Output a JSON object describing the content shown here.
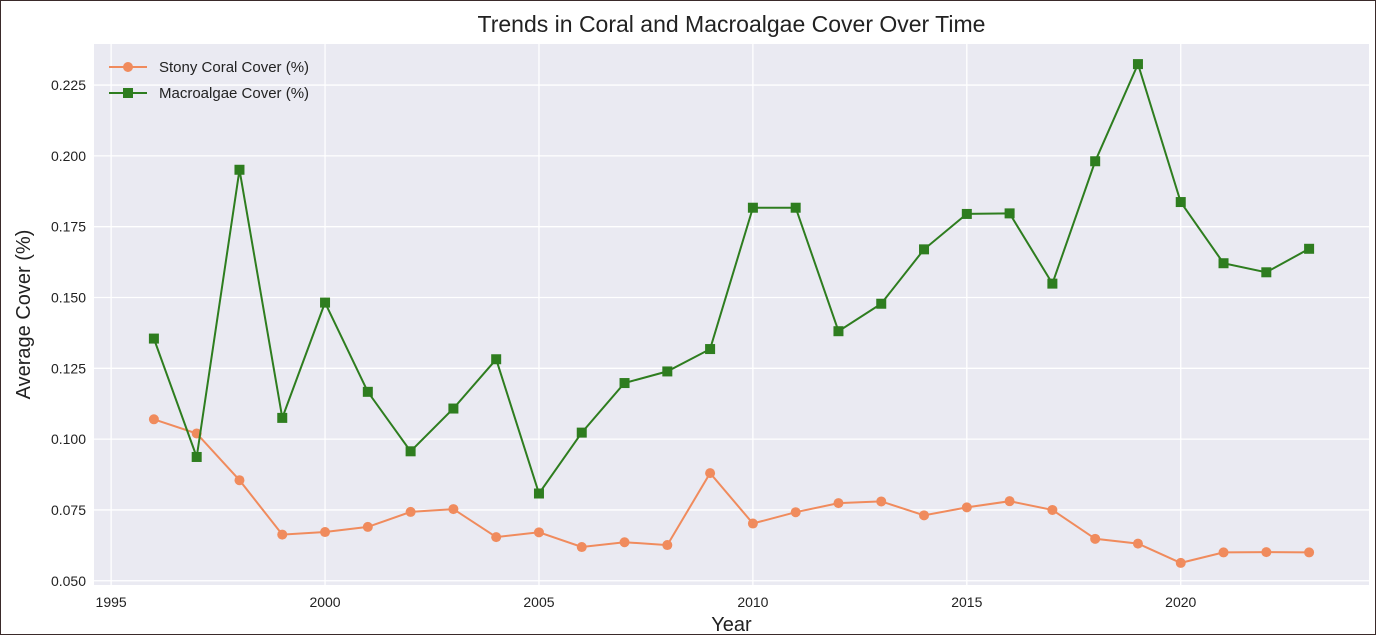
{
  "chart_data": {
    "type": "line",
    "title": "Trends in Coral and Macroalgae Cover Over Time",
    "xlabel": "Year",
    "ylabel": "Average Cover (%)",
    "xlim": [
      1994.6,
      1996.0
    ],
    "x": [
      1996,
      1997,
      1998,
      1999,
      2000,
      2001,
      2002,
      2003,
      2004,
      2005,
      2006,
      2007,
      2008,
      2009,
      2010,
      2011,
      2012,
      2013,
      2014,
      2015,
      2016,
      2017,
      2018,
      2019,
      2020,
      2021,
      2022,
      2023
    ],
    "xticks": [
      1995,
      2000,
      2005,
      2010,
      2015,
      2020
    ],
    "xtick_labels": [
      "1995",
      "2000",
      "2005",
      "2010",
      "2015",
      "2020"
    ],
    "ylim": [
      0.0485,
      0.2395
    ],
    "yticks": [
      0.05,
      0.075,
      0.1,
      0.125,
      0.15,
      0.175,
      0.2,
      0.225
    ],
    "ytick_labels": [
      "0.050",
      "0.075",
      "0.100",
      "0.125",
      "0.150",
      "0.175",
      "0.200",
      "0.225"
    ],
    "grid": true,
    "legend_position": "top-left",
    "series": [
      {
        "name": "Stony Coral Cover (%)",
        "color": "#f08b5d",
        "marker": "circle",
        "values": [
          0.107,
          0.102,
          0.0855,
          0.0663,
          0.0672,
          0.069,
          0.0743,
          0.0753,
          0.0654,
          0.0671,
          0.0619,
          0.0636,
          0.0626,
          0.088,
          0.0702,
          0.0742,
          0.0774,
          0.078,
          0.0731,
          0.0759,
          0.0781,
          0.075,
          0.0648,
          0.0631,
          0.0563,
          0.06,
          0.0601,
          0.06
        ]
      },
      {
        "name": "Macroalgae Cover (%)",
        "color": "#2e7d1f",
        "marker": "square",
        "values": [
          0.1355,
          0.0937,
          0.1951,
          0.1075,
          0.1482,
          0.1167,
          0.0957,
          0.1108,
          0.1282,
          0.0808,
          0.1023,
          0.1198,
          0.1239,
          0.1318,
          0.1817,
          0.1817,
          0.1381,
          0.1478,
          0.167,
          0.1795,
          0.1797,
          0.1549,
          0.1981,
          0.2324,
          0.1837,
          0.1621,
          0.1589,
          0.1672
        ]
      }
    ]
  }
}
